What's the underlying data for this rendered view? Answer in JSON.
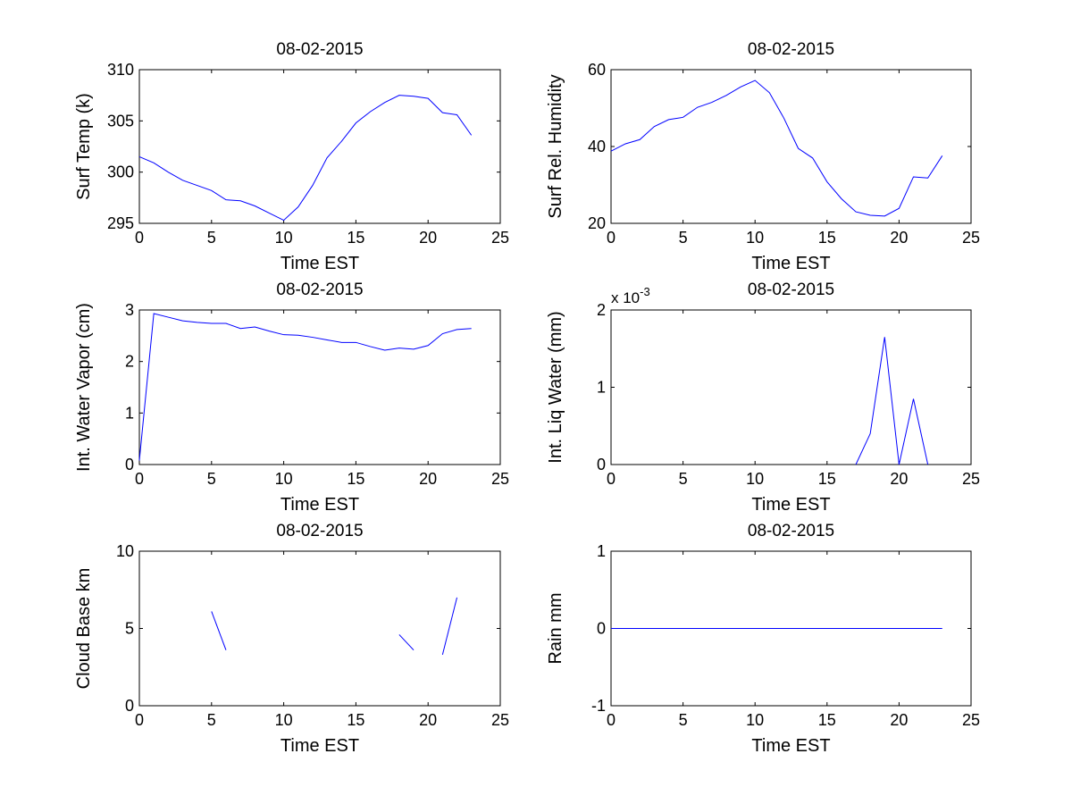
{
  "chart_data": [
    {
      "type": "line",
      "title": "08-02-2015",
      "xlabel": "Time EST",
      "ylabel": "Surf Temp (k)",
      "xlim": [
        0,
        25
      ],
      "ylim": [
        295,
        310
      ],
      "xticks": [
        0,
        5,
        10,
        15,
        20,
        25
      ],
      "xtick_labels": [
        "0",
        "5",
        "10",
        "15",
        "20",
        "25"
      ],
      "yticks": [
        295,
        300,
        305,
        310
      ],
      "ytick_labels": [
        "295",
        "300",
        "305",
        "310"
      ],
      "grid": false,
      "line_color": "#0000ff",
      "x": [
        0,
        1,
        2,
        3,
        4,
        5,
        6,
        7,
        8,
        9,
        10,
        11,
        12,
        13,
        14,
        15,
        16,
        17,
        18,
        19,
        20,
        21,
        22,
        23
      ],
      "y": [
        301.5,
        300.9,
        300.0,
        299.2,
        298.7,
        298.2,
        297.3,
        297.2,
        296.7,
        296.0,
        295.3,
        296.6,
        298.7,
        301.4,
        303.0,
        304.8,
        305.9,
        306.8,
        307.5,
        307.4,
        307.2,
        305.8,
        305.6,
        303.6
      ]
    },
    {
      "type": "line",
      "title": "08-02-2015",
      "xlabel": "Time EST",
      "ylabel": "Surf Rel. Humidity",
      "xlim": [
        0,
        25
      ],
      "ylim": [
        20,
        60
      ],
      "xticks": [
        0,
        5,
        10,
        15,
        20,
        25
      ],
      "xtick_labels": [
        "0",
        "5",
        "10",
        "15",
        "20",
        "25"
      ],
      "yticks": [
        20,
        40,
        60
      ],
      "ytick_labels": [
        "20",
        "40",
        "60"
      ],
      "grid": false,
      "line_color": "#0000ff",
      "x": [
        0,
        1,
        2,
        3,
        4,
        5,
        6,
        7,
        8,
        9,
        10,
        11,
        12,
        13,
        14,
        15,
        16,
        17,
        18,
        19,
        20,
        21,
        22,
        23
      ],
      "y": [
        38.8,
        40.7,
        41.8,
        45.2,
        47.0,
        47.6,
        50.2,
        51.5,
        53.3,
        55.5,
        57.2,
        54.0,
        47.4,
        39.5,
        37.0,
        30.8,
        26.4,
        23.0,
        22.1,
        21.9,
        23.9,
        32.1,
        31.8,
        37.6
      ]
    },
    {
      "type": "line",
      "title": "08-02-2015",
      "xlabel": "Time EST",
      "ylabel": "Int. Water Vapor (cm)",
      "xlim": [
        0,
        25
      ],
      "ylim": [
        0,
        3
      ],
      "xticks": [
        0,
        5,
        10,
        15,
        20,
        25
      ],
      "xtick_labels": [
        "0",
        "5",
        "10",
        "15",
        "20",
        "25"
      ],
      "yticks": [
        0,
        1,
        2,
        3
      ],
      "ytick_labels": [
        "0",
        "1",
        "2",
        "3"
      ],
      "grid": false,
      "line_color": "#0000ff",
      "x": [
        0,
        1,
        2,
        3,
        4,
        5,
        6,
        7,
        8,
        9,
        10,
        11,
        12,
        13,
        14,
        15,
        16,
        17,
        18,
        19,
        20,
        21,
        22,
        23
      ],
      "y": [
        0.08,
        2.93,
        2.86,
        2.79,
        2.76,
        2.74,
        2.74,
        2.64,
        2.67,
        2.59,
        2.52,
        2.51,
        2.47,
        2.42,
        2.37,
        2.37,
        2.29,
        2.22,
        2.26,
        2.24,
        2.31,
        2.54,
        2.62,
        2.64
      ]
    },
    {
      "type": "line",
      "title": "08-02-2015",
      "xlabel": "Time EST",
      "ylabel": "Int. Liq Water (mm)",
      "scale_label_base": "x 10",
      "scale_label_exp": "-3",
      "xlim": [
        0,
        25
      ],
      "ylim": [
        0,
        2
      ],
      "xticks": [
        0,
        5,
        10,
        15,
        20,
        25
      ],
      "xtick_labels": [
        "0",
        "5",
        "10",
        "15",
        "20",
        "25"
      ],
      "yticks": [
        0,
        1,
        2
      ],
      "ytick_labels": [
        "0",
        "1",
        "2"
      ],
      "grid": false,
      "line_color": "#0000ff",
      "x": [
        17,
        18,
        19,
        20,
        21,
        22
      ],
      "y": [
        0,
        0.4,
        1.65,
        0,
        0.85,
        0
      ]
    },
    {
      "type": "line",
      "title": "08-02-2015",
      "xlabel": "Time EST",
      "ylabel": "Cloud Base km",
      "xlim": [
        0,
        25
      ],
      "ylim": [
        0,
        10
      ],
      "xticks": [
        0,
        5,
        10,
        15,
        20,
        25
      ],
      "xtick_labels": [
        "0",
        "5",
        "10",
        "15",
        "20",
        "25"
      ],
      "yticks": [
        0,
        5,
        10
      ],
      "ytick_labels": [
        "0",
        "5",
        "10"
      ],
      "grid": false,
      "line_color": "#0000ff",
      "segments": [
        {
          "x": [
            5,
            6
          ],
          "y": [
            6.1,
            3.6
          ]
        },
        {
          "x": [
            18,
            19
          ],
          "y": [
            4.6,
            3.6
          ]
        },
        {
          "x": [
            21,
            22
          ],
          "y": [
            3.3,
            7.0
          ]
        }
      ]
    },
    {
      "type": "line",
      "title": "08-02-2015",
      "xlabel": "Time EST",
      "ylabel": "Rain mm",
      "xlim": [
        0,
        25
      ],
      "ylim": [
        -1,
        1
      ],
      "xticks": [
        0,
        5,
        10,
        15,
        20,
        25
      ],
      "xtick_labels": [
        "0",
        "5",
        "10",
        "15",
        "20",
        "25"
      ],
      "yticks": [
        -1,
        0,
        1
      ],
      "ytick_labels": [
        "-1",
        "0",
        "1"
      ],
      "grid": false,
      "line_color": "#0000ff",
      "x": [
        0,
        23
      ],
      "y": [
        0,
        0
      ]
    }
  ]
}
